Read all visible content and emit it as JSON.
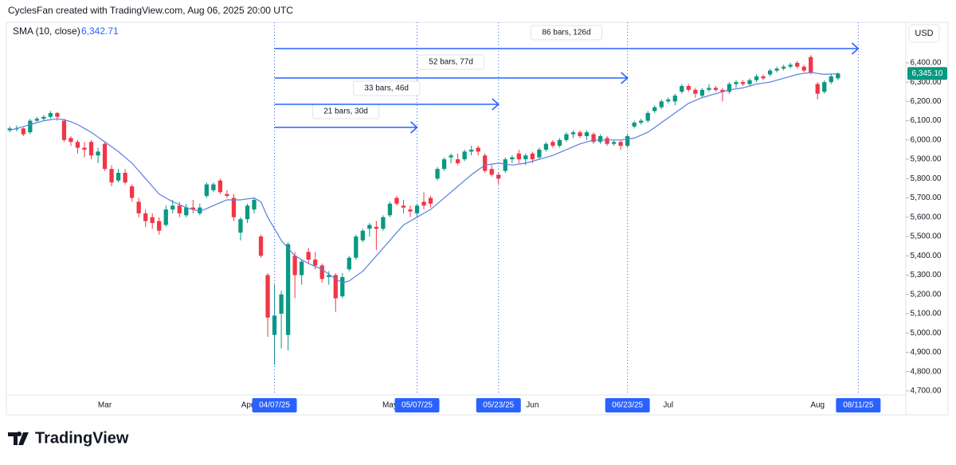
{
  "header": "CyclesFan created with TradingView.com, Aug 06, 2025 20:00 UTC",
  "logo": "TradingView",
  "chart_data": {
    "type": "candlestick",
    "currency": "USD",
    "up_color": "#089981",
    "down_color": "#f23645",
    "sma": {
      "name": "SMA (10, close)",
      "color": "#5b7fe0",
      "last": {
        "value": 6342.71,
        "label": "6,342.71"
      },
      "values": [
        6050,
        6060,
        6070,
        6080,
        6090,
        6100,
        6105,
        6110,
        6105,
        6095,
        6080,
        6060,
        6040,
        6015,
        5990,
        5965,
        5940,
        5910,
        5880,
        5840,
        5800,
        5760,
        5720,
        5700,
        5680,
        5665,
        5650,
        5640,
        5630,
        5645,
        5660,
        5675,
        5690,
        5690,
        5690,
        5695,
        5700,
        5680,
        5600,
        5540,
        5480,
        5440,
        5400,
        5380,
        5360,
        5345,
        5330,
        5305,
        5280,
        5260,
        5270,
        5295,
        5320,
        5360,
        5400,
        5440,
        5480,
        5520,
        5560,
        5580,
        5600,
        5620,
        5640,
        5670,
        5700,
        5730,
        5760,
        5790,
        5820,
        5845,
        5870,
        5875,
        5880,
        5875,
        5870,
        5875,
        5880,
        5890,
        5900,
        5910,
        5920,
        5935,
        5950,
        5965,
        5980,
        5990,
        6000,
        6000,
        6000,
        6000,
        6000,
        6005,
        6010,
        6025,
        6040,
        6065,
        6090,
        6115,
        6140,
        6165,
        6190,
        6205,
        6220,
        6230,
        6240,
        6250,
        6260,
        6265,
        6270,
        6280,
        6290,
        6295,
        6300,
        6310,
        6320,
        6330,
        6340,
        6345,
        6350,
        6345,
        6340,
        6342,
        6343
      ]
    },
    "last_price": {
      "value": 6345.1,
      "label": "6,345.10"
    },
    "candles": [
      [
        6050,
        6070,
        6040,
        6060
      ],
      [
        6060,
        6075,
        6045,
        6060
      ],
      [
        6060,
        6065,
        6020,
        6030
      ],
      [
        6040,
        6110,
        6030,
        6100
      ],
      [
        6100,
        6120,
        6095,
        6110
      ],
      [
        6110,
        6130,
        6100,
        6120
      ],
      [
        6120,
        6150,
        6110,
        6140
      ],
      [
        6140,
        6145,
        6100,
        6120
      ],
      [
        6100,
        6110,
        5990,
        6000
      ],
      [
        6010,
        6020,
        5970,
        5990
      ],
      [
        5990,
        6000,
        5930,
        5960
      ],
      [
        5960,
        5990,
        5910,
        5950
      ],
      [
        5990,
        6000,
        5900,
        5920
      ],
      [
        5920,
        5960,
        5880,
        5940
      ],
      [
        5980,
        5990,
        5840,
        5850
      ],
      [
        5850,
        5870,
        5760,
        5780
      ],
      [
        5790,
        5850,
        5780,
        5830
      ],
      [
        5830,
        5850,
        5770,
        5780
      ],
      [
        5760,
        5770,
        5680,
        5700
      ],
      [
        5680,
        5700,
        5600,
        5620
      ],
      [
        5620,
        5640,
        5550,
        5580
      ],
      [
        5600,
        5620,
        5540,
        5570
      ],
      [
        5580,
        5600,
        5510,
        5530
      ],
      [
        5560,
        5660,
        5550,
        5640
      ],
      [
        5640,
        5690,
        5620,
        5660
      ],
      [
        5660,
        5680,
        5600,
        5620
      ],
      [
        5610,
        5670,
        5600,
        5650
      ],
      [
        5650,
        5690,
        5620,
        5640
      ],
      [
        5620,
        5670,
        5610,
        5650
      ],
      [
        5710,
        5780,
        5700,
        5770
      ],
      [
        5740,
        5780,
        5730,
        5770
      ],
      [
        5790,
        5800,
        5720,
        5730
      ],
      [
        5720,
        5740,
        5700,
        5710
      ],
      [
        5700,
        5720,
        5580,
        5600
      ],
      [
        5520,
        5600,
        5480,
        5590
      ],
      [
        5590,
        5670,
        5570,
        5660
      ],
      [
        5640,
        5700,
        5620,
        5690
      ],
      [
        5500,
        5510,
        5390,
        5400
      ],
      [
        5300,
        5310,
        4980,
        5080
      ],
      [
        4990,
        5250,
        4835,
        5090
      ],
      [
        5100,
        5220,
        4920,
        5200
      ],
      [
        4990,
        5470,
        4910,
        5460
      ],
      [
        5400,
        5420,
        5180,
        5300
      ],
      [
        5300,
        5380,
        5250,
        5370
      ],
      [
        5420,
        5440,
        5360,
        5380
      ],
      [
        5380,
        5420,
        5330,
        5350
      ],
      [
        5350,
        5360,
        5260,
        5280
      ],
      [
        5290,
        5320,
        5250,
        5300
      ],
      [
        5300,
        5310,
        5110,
        5180
      ],
      [
        5190,
        5310,
        5180,
        5290
      ],
      [
        5330,
        5400,
        5320,
        5390
      ],
      [
        5390,
        5510,
        5380,
        5500
      ],
      [
        5480,
        5540,
        5470,
        5530
      ],
      [
        5540,
        5570,
        5500,
        5560
      ],
      [
        5550,
        5580,
        5430,
        5540
      ],
      [
        5540,
        5610,
        5530,
        5600
      ],
      [
        5610,
        5680,
        5600,
        5670
      ],
      [
        5700,
        5710,
        5660,
        5670
      ],
      [
        5660,
        5690,
        5620,
        5650
      ],
      [
        5640,
        5660,
        5600,
        5630
      ],
      [
        5620,
        5670,
        5600,
        5660
      ],
      [
        5680,
        5730,
        5640,
        5660
      ],
      [
        5700,
        5710,
        5650,
        5670
      ],
      [
        5800,
        5860,
        5790,
        5850
      ],
      [
        5850,
        5910,
        5840,
        5900
      ],
      [
        5910,
        5930,
        5880,
        5920
      ],
      [
        5900,
        5930,
        5870,
        5880
      ],
      [
        5900,
        5950,
        5890,
        5940
      ],
      [
        5940,
        5970,
        5920,
        5950
      ],
      [
        5960,
        5970,
        5920,
        5940
      ],
      [
        5920,
        5930,
        5830,
        5840
      ],
      [
        5850,
        5870,
        5810,
        5820
      ],
      [
        5820,
        5830,
        5770,
        5800
      ],
      [
        5840,
        5910,
        5830,
        5900
      ],
      [
        5900,
        5920,
        5880,
        5910
      ],
      [
        5930,
        5950,
        5880,
        5900
      ],
      [
        5900,
        5930,
        5870,
        5920
      ],
      [
        5930,
        5940,
        5880,
        5900
      ],
      [
        5910,
        5960,
        5900,
        5950
      ],
      [
        5950,
        5990,
        5940,
        5980
      ],
      [
        5990,
        6000,
        5960,
        5970
      ],
      [
        5970,
        6010,
        5960,
        6000
      ],
      [
        6000,
        6040,
        5990,
        6030
      ],
      [
        6030,
        6050,
        6010,
        6040
      ],
      [
        6040,
        6050,
        6010,
        6020
      ],
      [
        6020,
        6050,
        6000,
        6040
      ],
      [
        6030,
        6040,
        5980,
        5990
      ],
      [
        5990,
        6030,
        5980,
        6020
      ],
      [
        6010,
        6020,
        5970,
        5980
      ],
      [
        5980,
        6000,
        5970,
        5990
      ],
      [
        5990,
        6000,
        5950,
        5970
      ],
      [
        5970,
        6030,
        5960,
        6020
      ],
      [
        6070,
        6100,
        6060,
        6090
      ],
      [
        6090,
        6110,
        6080,
        6100
      ],
      [
        6100,
        6150,
        6090,
        6140
      ],
      [
        6150,
        6180,
        6140,
        6170
      ],
      [
        6170,
        6210,
        6160,
        6200
      ],
      [
        6200,
        6220,
        6190,
        6210
      ],
      [
        6200,
        6240,
        6180,
        6230
      ],
      [
        6250,
        6290,
        6240,
        6280
      ],
      [
        6280,
        6290,
        6250,
        6260
      ],
      [
        6260,
        6270,
        6220,
        6240
      ],
      [
        6230,
        6270,
        6220,
        6260
      ],
      [
        6260,
        6290,
        6250,
        6270
      ],
      [
        6270,
        6280,
        6250,
        6260
      ],
      [
        6260,
        6270,
        6200,
        6250
      ],
      [
        6250,
        6300,
        6240,
        6290
      ],
      [
        6290,
        6310,
        6270,
        6300
      ],
      [
        6300,
        6310,
        6280,
        6290
      ],
      [
        6290,
        6320,
        6280,
        6310
      ],
      [
        6310,
        6340,
        6300,
        6330
      ],
      [
        6330,
        6340,
        6310,
        6320
      ],
      [
        6340,
        6370,
        6330,
        6360
      ],
      [
        6360,
        6380,
        6350,
        6370
      ],
      [
        6370,
        6390,
        6360,
        6380
      ],
      [
        6380,
        6400,
        6370,
        6390
      ],
      [
        6400,
        6410,
        6370,
        6380
      ],
      [
        6380,
        6390,
        6350,
        6360
      ],
      [
        6430,
        6440,
        6340,
        6350
      ],
      [
        6290,
        6300,
        6210,
        6240
      ],
      [
        6250,
        6310,
        6240,
        6300
      ],
      [
        6300,
        6340,
        6290,
        6330
      ],
      [
        6320,
        6350,
        6310,
        6345
      ]
    ],
    "xlim": [
      -0.5,
      132
    ],
    "xticks": [
      {
        "value": 14,
        "label": "Mar"
      },
      {
        "value": 35,
        "label": "Apr"
      },
      {
        "value": 56,
        "label": "May"
      },
      {
        "value": 77,
        "label": "Jun"
      },
      {
        "value": 97,
        "label": "Jul"
      },
      {
        "value": 119,
        "label": "Aug"
      }
    ],
    "ylim": [
      4580,
      6610
    ],
    "yticks": [
      {
        "value": 4700,
        "label": "4,700.00"
      },
      {
        "value": 4800,
        "label": "4,800.00"
      },
      {
        "value": 4900,
        "label": "4,900.00"
      },
      {
        "value": 5000,
        "label": "5,000.00"
      },
      {
        "value": 5100,
        "label": "5,100.00"
      },
      {
        "value": 5200,
        "label": "5,200.00"
      },
      {
        "value": 5300,
        "label": "5,300.00"
      },
      {
        "value": 5400,
        "label": "5,400.00"
      },
      {
        "value": 5500,
        "label": "5,500.00"
      },
      {
        "value": 5600,
        "label": "5,600.00"
      },
      {
        "value": 5700,
        "label": "5,700.00"
      },
      {
        "value": 5800,
        "label": "5,800.00"
      },
      {
        "value": 5900,
        "label": "5,900.00"
      },
      {
        "value": 6000,
        "label": "6,000.00"
      },
      {
        "value": 6100,
        "label": "6,100.00"
      },
      {
        "value": 6200,
        "label": "6,200.00"
      },
      {
        "value": 6300,
        "label": "6,300.00"
      },
      {
        "value": 6400,
        "label": "6,400.00"
      }
    ],
    "range_start": {
      "value": 39,
      "label": "04/07/25"
    },
    "ranges": [
      {
        "label": "21 bars, 30d",
        "end": {
          "value": 60,
          "label": "05/07/25"
        }
      },
      {
        "label": "33 bars, 46d",
        "end": {
          "value": 72,
          "label": "05/23/25"
        }
      },
      {
        "label": "52 bars, 77d",
        "end": {
          "value": 91,
          "label": "06/23/25"
        }
      },
      {
        "label": "86 bars, 126d",
        "end": {
          "value": 125,
          "label": "08/11/25"
        }
      }
    ]
  }
}
